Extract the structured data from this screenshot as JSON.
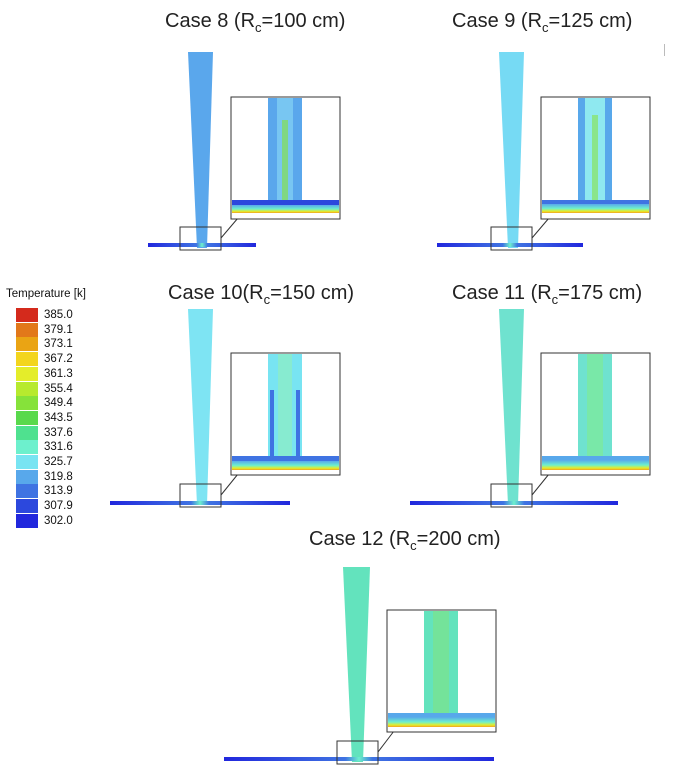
{
  "legend": {
    "title": "Temperature [k]",
    "values": [
      "385.0",
      "379.1",
      "373.1",
      "367.2",
      "361.3",
      "355.4",
      "349.4",
      "343.5",
      "337.6",
      "331.6",
      "325.7",
      "319.8",
      "313.9",
      "307.9",
      "302.0"
    ],
    "colors": [
      "#d42a1c",
      "#e2781a",
      "#eaa414",
      "#f3d51d",
      "#e4ed2a",
      "#b7ea2e",
      "#86e23a",
      "#59d94c",
      "#4fe18f",
      "#6df0cd",
      "#78e4f2",
      "#58a8eb",
      "#3f73e2",
      "#2c48dd",
      "#2127dd"
    ]
  },
  "cases": [
    {
      "label": "Case 8 (R",
      "sub": "c",
      "rest": "=100 cm)",
      "jet_color": "#5aa7ec",
      "core_color": "#78c6f2"
    },
    {
      "label": "Case 9 (R",
      "sub": "c",
      "rest": "=125 cm)",
      "jet_color": "#76daf4",
      "core_color": "#8fe9f0"
    },
    {
      "label": "Case 10(R",
      "sub": "c",
      "rest": "=150 cm)",
      "jet_color": "#7ee4f3",
      "core_color": "#87ebd0"
    },
    {
      "label": "Case 11 (R",
      "sub": "c",
      "rest": "=175 cm)",
      "jet_color": "#6fe2cf",
      "core_color": "#79e8a8"
    },
    {
      "label": "Case 12 (R",
      "sub": "c",
      "rest": "=200 cm)",
      "jet_color": "#63e3bd",
      "core_color": "#74e39a"
    }
  ]
}
